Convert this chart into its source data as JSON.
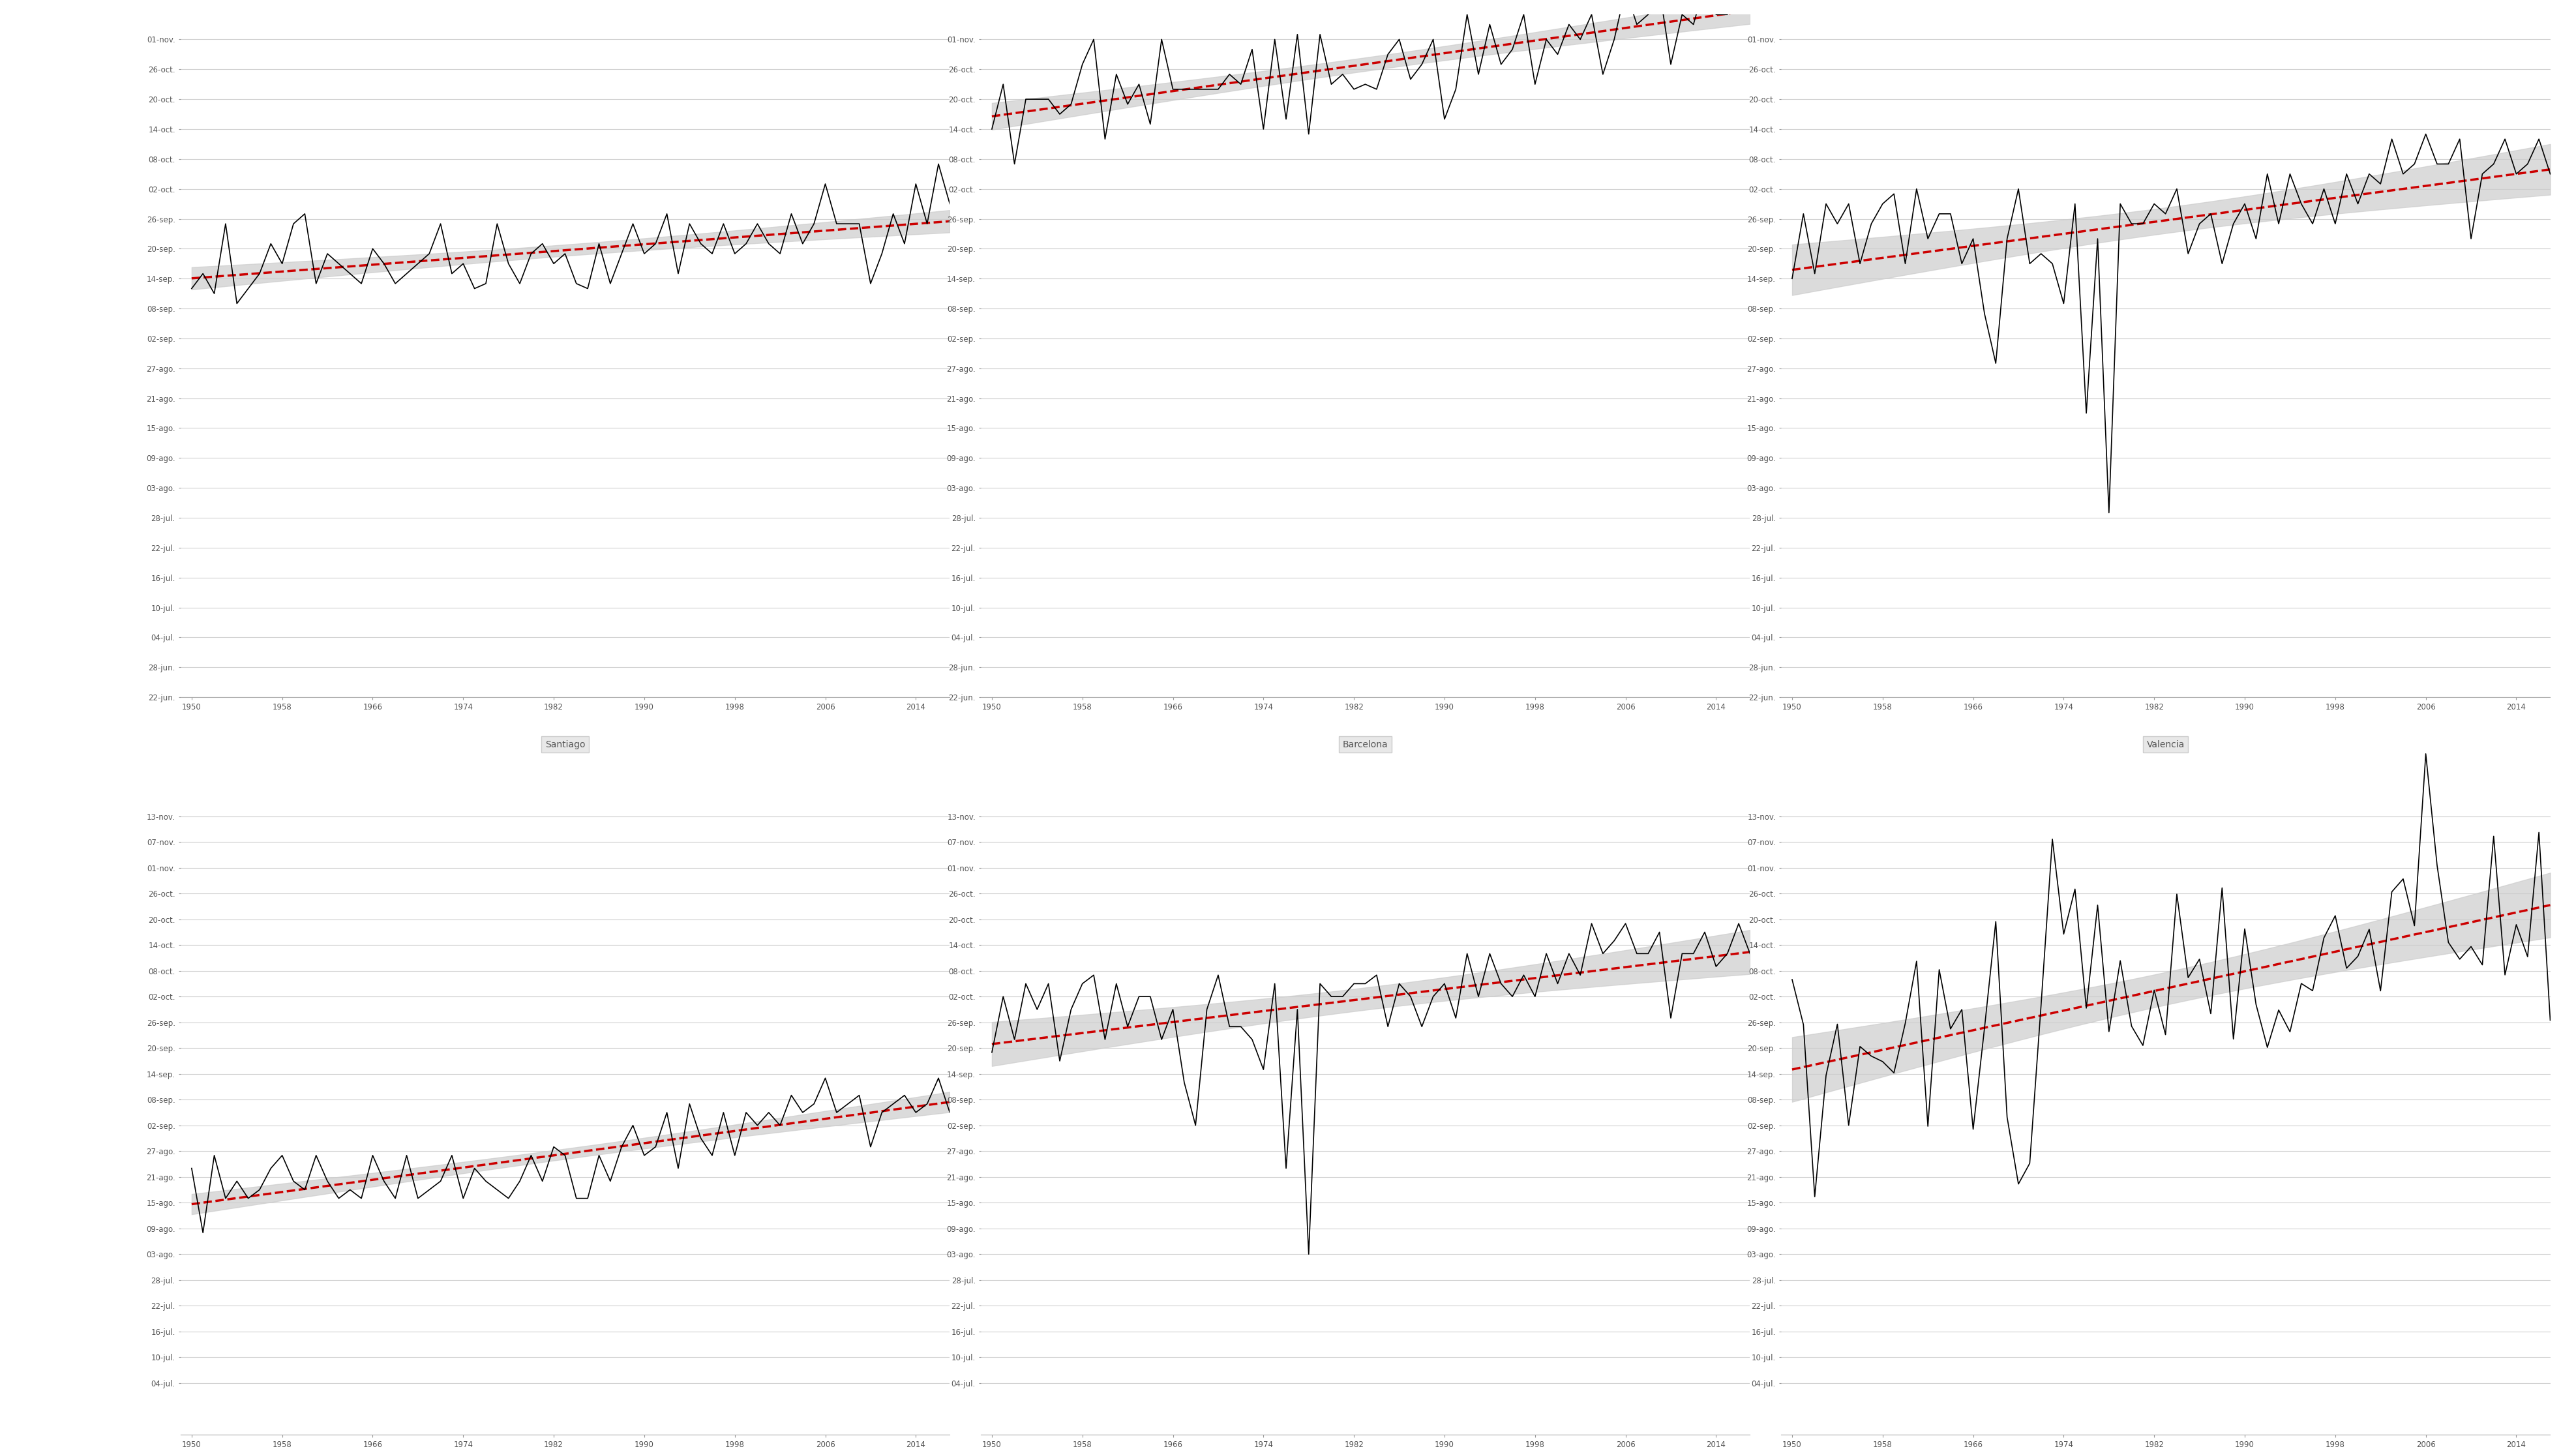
{
  "cities_row1": [
    "",
    "",
    ""
  ],
  "cities_row2": [
    "Santiago",
    "Barcelona",
    "Valencia"
  ],
  "background_color": "#ffffff",
  "panel_bg": "#f0f0f0",
  "title_fontsize": 11,
  "tick_fontsize": 8.5,
  "label_color": "#555555",
  "years": [
    1950,
    1951,
    1952,
    1953,
    1954,
    1955,
    1956,
    1957,
    1958,
    1959,
    1960,
    1961,
    1962,
    1963,
    1964,
    1965,
    1966,
    1967,
    1968,
    1969,
    1970,
    1971,
    1972,
    1973,
    1974,
    1975,
    1976,
    1977,
    1978,
    1979,
    1980,
    1981,
    1982,
    1983,
    1984,
    1985,
    1986,
    1987,
    1988,
    1989,
    1990,
    1991,
    1992,
    1993,
    1994,
    1995,
    1996,
    1997,
    1998,
    1999,
    2000,
    2001,
    2002,
    2003,
    2004,
    2005,
    2006,
    2007,
    2008,
    2009,
    2010,
    2011,
    2012,
    2013,
    2014,
    2015,
    2016,
    2017
  ],
  "data_city1": [
    255,
    258,
    254,
    268,
    252,
    255,
    258,
    264,
    260,
    268,
    270,
    256,
    262,
    260,
    258,
    256,
    263,
    260,
    256,
    258,
    260,
    262,
    268,
    258,
    260,
    255,
    256,
    268,
    260,
    256,
    262,
    264,
    260,
    262,
    256,
    255,
    264,
    256,
    262,
    268,
    262,
    264,
    270,
    258,
    268,
    264,
    262,
    268,
    262,
    264,
    268,
    264,
    262,
    270,
    264,
    268,
    276,
    268,
    268,
    268,
    256,
    262,
    270,
    264,
    276,
    268,
    280,
    272
  ],
  "data_city2": [
    287,
    296,
    280,
    293,
    293,
    293,
    290,
    292,
    300,
    305,
    285,
    298,
    292,
    296,
    288,
    305,
    295,
    295,
    295,
    295,
    295,
    298,
    296,
    303,
    287,
    305,
    289,
    306,
    286,
    306,
    296,
    298,
    295,
    296,
    295,
    302,
    305,
    297,
    300,
    305,
    289,
    295,
    310,
    298,
    308,
    300,
    303,
    310,
    296,
    305,
    302,
    308,
    305,
    310,
    298,
    305,
    315,
    308,
    310,
    315,
    300,
    310,
    308,
    316,
    310,
    310,
    315,
    320
  ],
  "data_city3": [
    257,
    270,
    258,
    272,
    268,
    272,
    260,
    268,
    272,
    274,
    260,
    275,
    265,
    270,
    270,
    260,
    265,
    250,
    240,
    265,
    275,
    260,
    262,
    260,
    252,
    272,
    230,
    265,
    210,
    272,
    268,
    268,
    272,
    270,
    275,
    262,
    268,
    270,
    260,
    268,
    272,
    265,
    278,
    268,
    278,
    272,
    268,
    275,
    268,
    278,
    272,
    278,
    276,
    285,
    278,
    280,
    286,
    280,
    280,
    285,
    265,
    278,
    280,
    285,
    278,
    280,
    285,
    278
  ],
  "data_city4": [
    235,
    220,
    238,
    228,
    232,
    228,
    230,
    235,
    238,
    232,
    230,
    238,
    232,
    228,
    230,
    228,
    238,
    232,
    228,
    238,
    228,
    230,
    232,
    238,
    228,
    235,
    232,
    230,
    228,
    232,
    238,
    232,
    240,
    238,
    228,
    228,
    238,
    232,
    240,
    245,
    238,
    240,
    248,
    235,
    250,
    242,
    238,
    248,
    238,
    248,
    245,
    248,
    245,
    252,
    248,
    250,
    256,
    248,
    250,
    252,
    240,
    248,
    250,
    252,
    248,
    250,
    256,
    248
  ],
  "data_city5": [
    262,
    275,
    265,
    278,
    272,
    278,
    260,
    272,
    278,
    280,
    265,
    278,
    268,
    275,
    275,
    265,
    272,
    255,
    245,
    272,
    280,
    268,
    268,
    265,
    258,
    278,
    235,
    272,
    215,
    278,
    275,
    275,
    278,
    278,
    280,
    268,
    278,
    275,
    268,
    275,
    278,
    270,
    285,
    275,
    285,
    278,
    275,
    280,
    275,
    285,
    278,
    285,
    280,
    292,
    285,
    288,
    292,
    285,
    285,
    290,
    270,
    285,
    285,
    290,
    282,
    285,
    292,
    285
  ]
}
